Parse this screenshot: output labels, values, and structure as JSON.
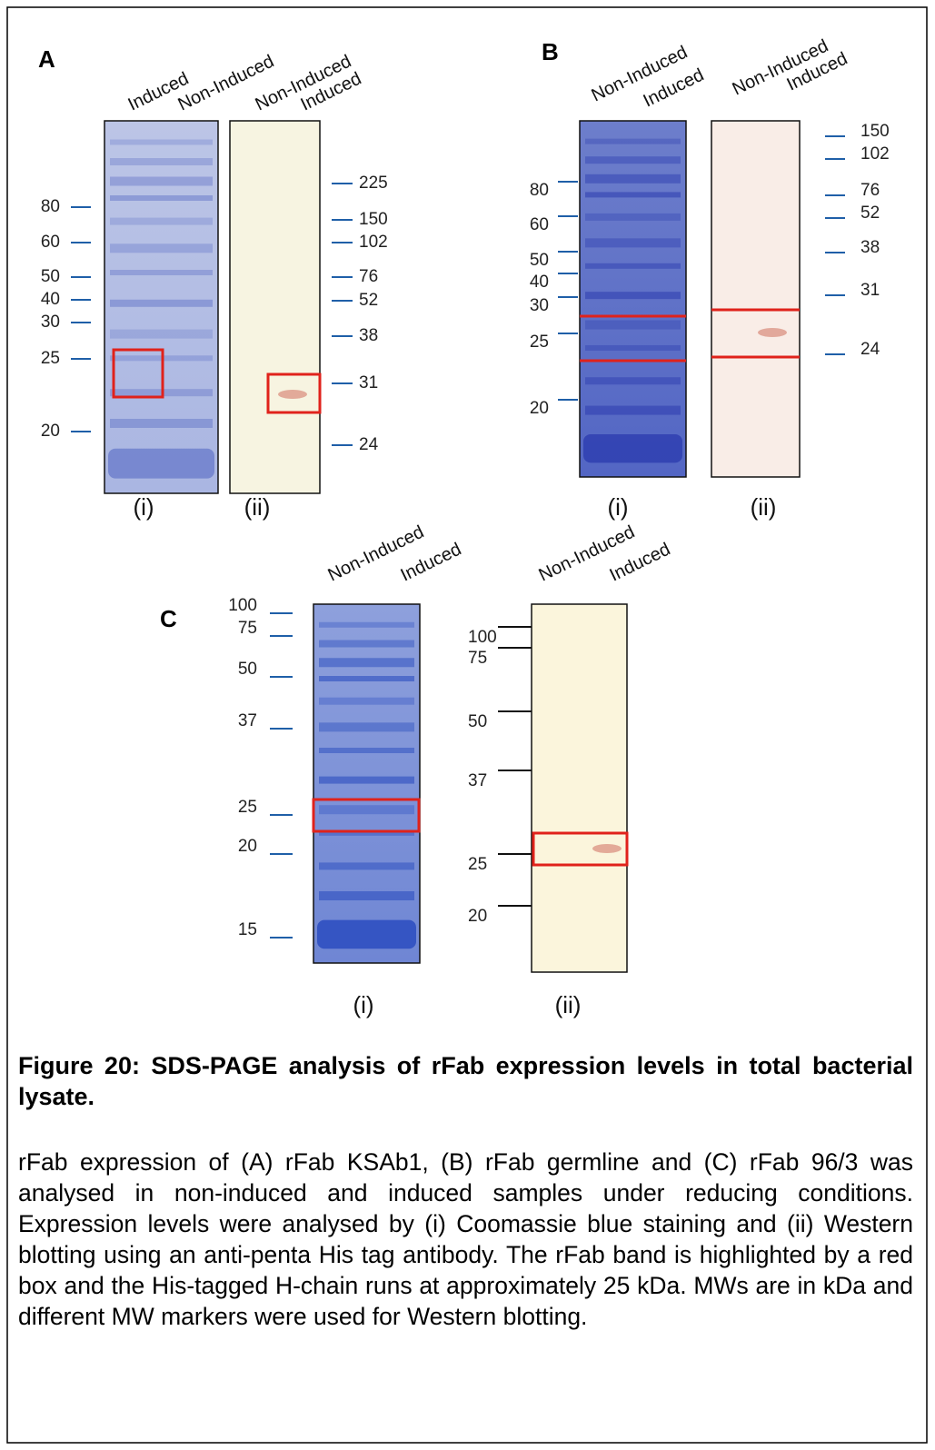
{
  "panels": [
    {
      "label": "A",
      "gels": [
        {
          "lanes": [
            "Induced",
            "Non-Induced"
          ],
          "markers": [
            80,
            60,
            50,
            40,
            30,
            25,
            20
          ],
          "caption": "(i)"
        },
        {
          "lanes": [
            "Non-Induced",
            "Induced"
          ],
          "markers": [
            225,
            150,
            102,
            76,
            52,
            38,
            31,
            24
          ],
          "caption": "(ii)"
        }
      ]
    },
    {
      "label": "B",
      "gels": [
        {
          "lanes": [
            "Non-Induced",
            "Induced"
          ],
          "markers": [
            80,
            60,
            50,
            40,
            30,
            25,
            20
          ],
          "caption": "(i)"
        },
        {
          "lanes": [
            "Non-Induced",
            "Induced"
          ],
          "markers": [
            150,
            102,
            76,
            52,
            38,
            31,
            24
          ],
          "caption": "(ii)"
        }
      ]
    },
    {
      "label": "C",
      "gels": [
        {
          "lanes": [
            "Non-Induced",
            "Induced"
          ],
          "markers": [
            100,
            75,
            50,
            37,
            25,
            20,
            15
          ],
          "caption": "(i)"
        },
        {
          "lanes": [
            "Non-Induced",
            "Induced"
          ],
          "markers": [
            100,
            75,
            50,
            37,
            25,
            20
          ],
          "caption": "(ii)"
        }
      ]
    }
  ],
  "figure": {
    "title": "Figure 20: SDS-PAGE analysis of rFab expression levels in total bacterial lysate.",
    "body": "rFab expression of (A) rFab KSAb1, (B) rFab germline and (C) rFab 96/3 was analysed in non-induced and induced samples under reducing conditions. Expression levels were analysed by (i) Coomassie blue staining and (ii) Western blotting using an anti-penta His tag antibody. The rFab band is highlighted by a red box and the His-tagged H-chain runs at approximately 25 kDa. MWs are in kDa and different MW markers were used for Western blotting."
  }
}
